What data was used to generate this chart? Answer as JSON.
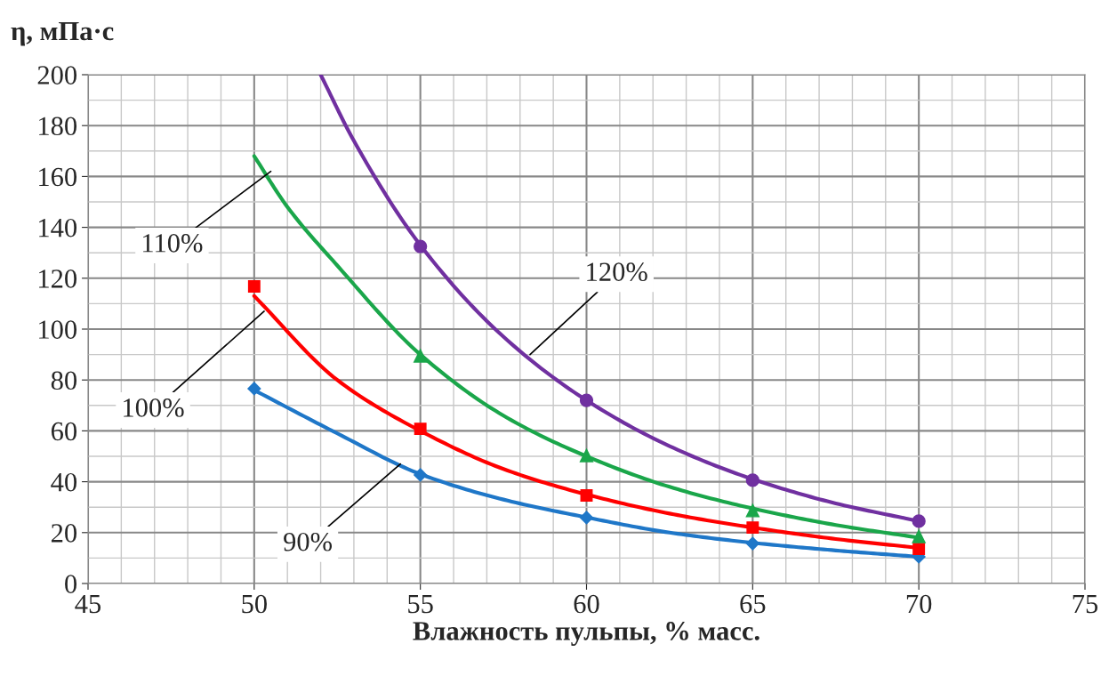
{
  "chart_data": {
    "type": "scatter",
    "xlabel": "Влажность пульпы, % масс.",
    "ylabel": "η, мПа·с",
    "xlim": [
      45,
      75
    ],
    "xticks": [
      45,
      50,
      55,
      60,
      65,
      70,
      75
    ],
    "ylim": [
      0,
      200
    ],
    "yticks": [
      0,
      20,
      40,
      60,
      80,
      100,
      120,
      140,
      160,
      180,
      200
    ],
    "grid": true,
    "legend": false,
    "series": [
      {
        "color": "#1f77c8",
        "marker": "diamond",
        "x": [
          50,
          55,
          60,
          65,
          70
        ],
        "values": [
          76.6,
          42.7,
          25.9,
          15.7,
          10.5
        ]
      },
      {
        "color": "#ff0000",
        "marker": "square",
        "x": [
          50,
          55,
          60,
          65,
          70
        ],
        "values": [
          116.8,
          60.8,
          34.6,
          22,
          13.6
        ]
      },
      {
        "color": "#1aa64a",
        "marker": "triangle",
        "x": [
          55,
          60,
          65,
          70
        ],
        "values": [
          89.5,
          50.3,
          28.7,
          18.5
        ]
      },
      {
        "color": "#7030a0",
        "marker": "circle",
        "x": [
          55,
          60,
          65,
          70
        ],
        "values": [
          132.5,
          72,
          40.6,
          24.5
        ]
      },
      {
        "type": "line",
        "color": "#1f77c8",
        "x": [
          50,
          52.5,
          55,
          57.5,
          60,
          62.5,
          65,
          67.5,
          70
        ],
        "values": [
          76,
          59,
          43,
          33,
          26,
          20,
          16,
          13,
          10.5
        ]
      },
      {
        "type": "line",
        "color": "#ff0000",
        "x": [
          50,
          52.5,
          55,
          57.5,
          60,
          62.5,
          65,
          67.5,
          70
        ],
        "values": [
          113,
          80,
          60,
          45,
          35,
          27.5,
          22,
          17.5,
          14
        ]
      },
      {
        "type": "line",
        "color": "#1aa64a",
        "x": [
          50,
          51,
          52.5,
          55,
          57.5,
          60,
          62.5,
          65,
          67.5,
          70
        ],
        "values": [
          168,
          148,
          125,
          90,
          66,
          50,
          38,
          29.5,
          23,
          18
        ]
      },
      {
        "type": "line",
        "color": "#7030a0",
        "x": [
          52,
          53,
          55,
          57.5,
          60,
          62.5,
          65,
          67.5,
          70
        ],
        "values": [
          200,
          174,
          133,
          97,
          72,
          54,
          41,
          31.5,
          24.5
        ]
      }
    ],
    "annotations": [
      {
        "text": "110%",
        "x": 50.5,
        "y": 162
      },
      {
        "text": "100%",
        "x": 50.3,
        "y": 107
      },
      {
        "text": "120%",
        "x": 58.3,
        "y": 90
      },
      {
        "text": "90%",
        "x": 54.4,
        "y": 47
      }
    ]
  }
}
